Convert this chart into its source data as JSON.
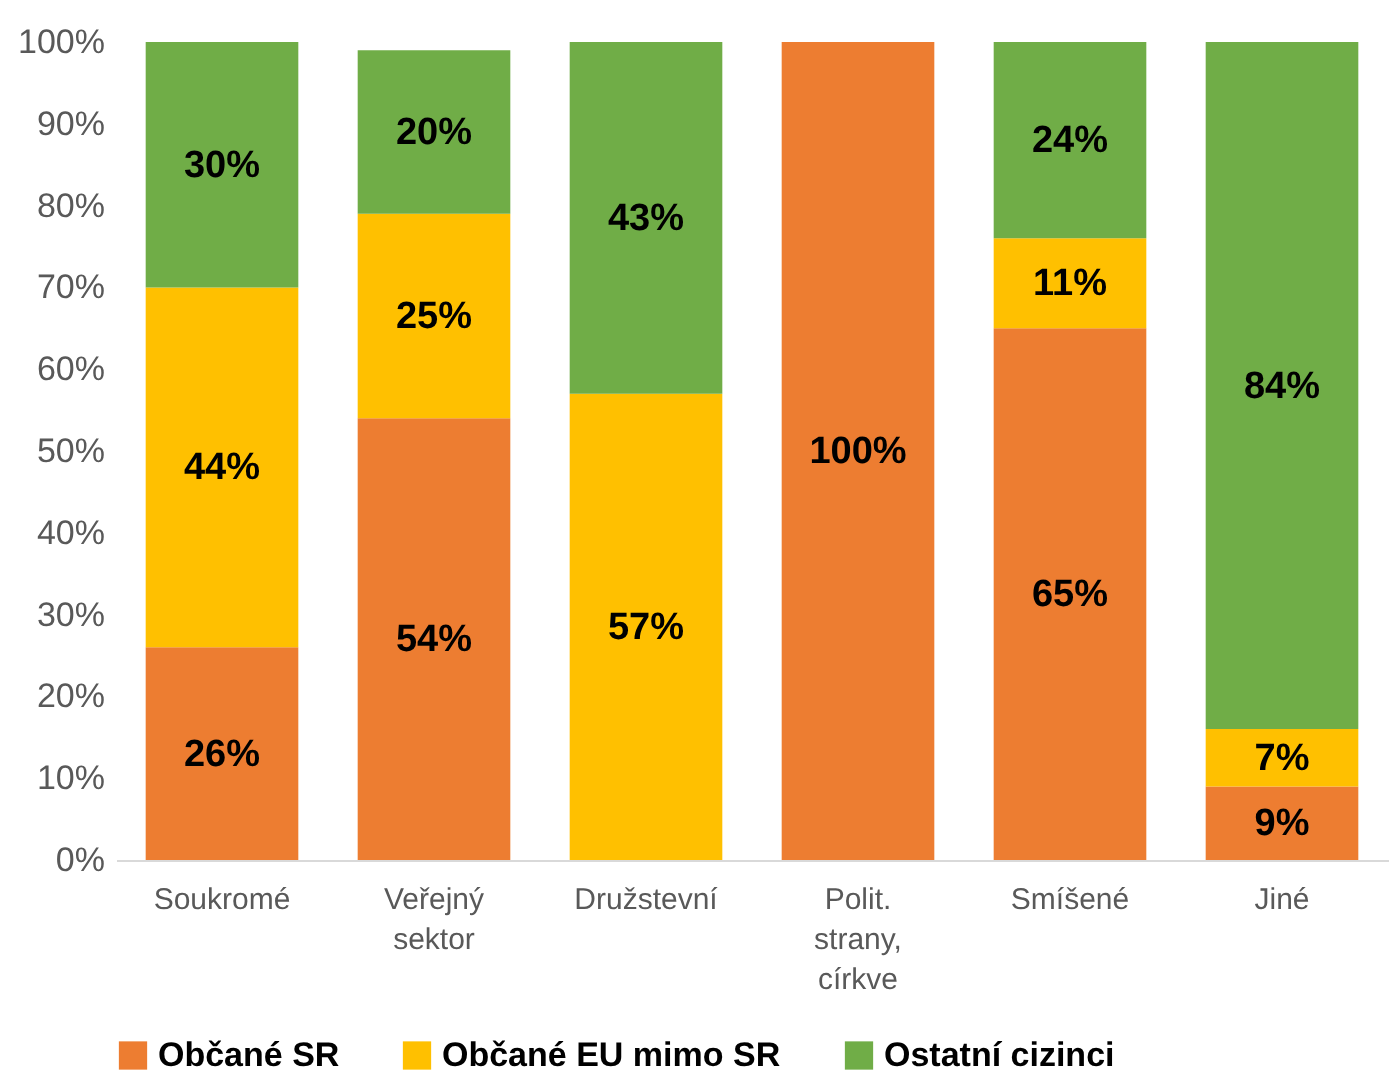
{
  "chart_data": {
    "type": "bar",
    "stacked": true,
    "legend": "bottom",
    "categories": [
      "Soukromé",
      "Veřejný sektor",
      "Družstevní",
      "Polit. strany, církve",
      "Smíšené",
      "Jiné"
    ],
    "series": [
      {
        "name": "Občané SR",
        "color": "#ed7d31",
        "values": [
          26,
          54,
          0,
          100,
          65,
          9
        ],
        "value_labels": [
          "26%",
          "54%",
          null,
          "100%",
          "65%",
          "9%"
        ]
      },
      {
        "name": "Občané EU mimo SR",
        "color": "#ffc000",
        "values": [
          44,
          25,
          57,
          0,
          11,
          7
        ],
        "value_labels": [
          "44%",
          "25%",
          "57%",
          null,
          "11%",
          "7%"
        ]
      },
      {
        "name": "Ostatní cizinci",
        "color": "#70ad47",
        "values": [
          30,
          20,
          43,
          0,
          24,
          84
        ],
        "value_labels": [
          "30%",
          "20%",
          "43%",
          null,
          "24%",
          "84%"
        ]
      }
    ],
    "ylim": [
      0,
      100
    ],
    "yticks": [
      {
        "value": 0,
        "label": "0%"
      },
      {
        "value": 10,
        "label": "10%"
      },
      {
        "value": 20,
        "label": "20%"
      },
      {
        "value": 30,
        "label": "30%"
      },
      {
        "value": 40,
        "label": "40%"
      },
      {
        "value": 50,
        "label": "50%"
      },
      {
        "value": 60,
        "label": "60%"
      },
      {
        "value": 70,
        "label": "70%"
      },
      {
        "value": 80,
        "label": "80%"
      },
      {
        "value": 90,
        "label": "90%"
      },
      {
        "value": 100,
        "label": "100%"
      }
    ]
  }
}
